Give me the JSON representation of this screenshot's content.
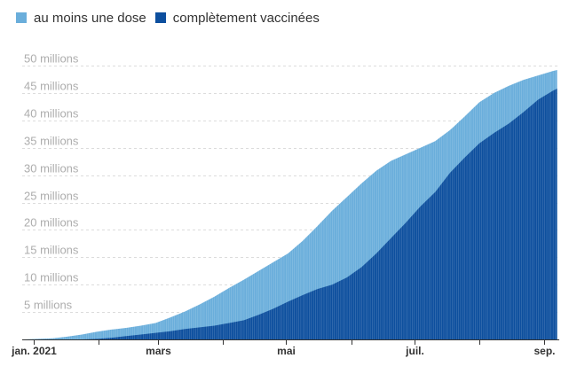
{
  "chart_data": {
    "type": "area",
    "legend": "top-left",
    "grid": true,
    "xlim": [
      "2020-12-27",
      "2021-09-08"
    ],
    "ylim": [
      0,
      50
    ],
    "x": [
      "2020-12-27",
      "2021-01-03",
      "2021-01-10",
      "2021-01-17",
      "2021-01-24",
      "2021-01-31",
      "2021-02-07",
      "2021-02-14",
      "2021-02-21",
      "2021-02-28",
      "2021-03-07",
      "2021-03-14",
      "2021-03-21",
      "2021-03-28",
      "2021-04-04",
      "2021-04-11",
      "2021-04-18",
      "2021-04-25",
      "2021-05-02",
      "2021-05-09",
      "2021-05-16",
      "2021-05-23",
      "2021-05-30",
      "2021-06-06",
      "2021-06-13",
      "2021-06-20",
      "2021-06-27",
      "2021-07-04",
      "2021-07-11",
      "2021-07-18",
      "2021-07-25",
      "2021-08-01",
      "2021-08-08",
      "2021-08-15",
      "2021-08-22",
      "2021-08-29",
      "2021-09-05",
      "2021-09-07"
    ],
    "series": [
      {
        "name": "au moins une dose",
        "color": "#6aaedb",
        "values": [
          0.0,
          0.1,
          0.2,
          0.5,
          0.9,
          1.4,
          1.8,
          2.1,
          2.5,
          3.0,
          4.0,
          5.1,
          6.4,
          7.8,
          9.4,
          10.9,
          12.5,
          14.1,
          15.7,
          18.0,
          20.7,
          23.5,
          26.0,
          28.5,
          30.8,
          32.6,
          33.8,
          35.0,
          36.2,
          38.2,
          40.7,
          43.3,
          45.0,
          46.3,
          47.4,
          48.2,
          49.0,
          49.2
        ]
      },
      {
        "name": "complètement vaccinées",
        "color": "#0d4f9e",
        "values": [
          0.0,
          0.0,
          0.0,
          0.0,
          0.0,
          0.1,
          0.3,
          0.6,
          0.9,
          1.2,
          1.5,
          1.9,
          2.2,
          2.5,
          3.0,
          3.5,
          4.5,
          5.6,
          6.9,
          8.1,
          9.2,
          10.0,
          11.3,
          13.2,
          15.7,
          18.5,
          21.3,
          24.3,
          26.9,
          30.4,
          33.2,
          35.8,
          37.7,
          39.4,
          41.5,
          43.8,
          45.4,
          45.8
        ]
      }
    ],
    "y_ticks": [
      {
        "value": 5,
        "label": "5 millions"
      },
      {
        "value": 10,
        "label": "10 millions"
      },
      {
        "value": 15,
        "label": "15 millions"
      },
      {
        "value": 20,
        "label": "20 millions"
      },
      {
        "value": 25,
        "label": "25 millions"
      },
      {
        "value": 30,
        "label": "30 millions"
      },
      {
        "value": 35,
        "label": "35 millions"
      },
      {
        "value": 40,
        "label": "40 millions"
      },
      {
        "value": 45,
        "label": "45 millions"
      },
      {
        "value": 50,
        "label": "50 millions"
      }
    ],
    "x_ticks": [
      {
        "date": "2021-01-01",
        "label": "jan. 2021"
      },
      {
        "date": "2021-03-01",
        "label": "mars"
      },
      {
        "date": "2021-05-01",
        "label": "mai"
      },
      {
        "date": "2021-07-01",
        "label": "juil."
      },
      {
        "date": "2021-09-01",
        "label": "sep."
      }
    ],
    "x_minor_ticks": [
      "2021-02-01",
      "2021-04-01",
      "2021-06-01",
      "2021-08-01"
    ]
  }
}
